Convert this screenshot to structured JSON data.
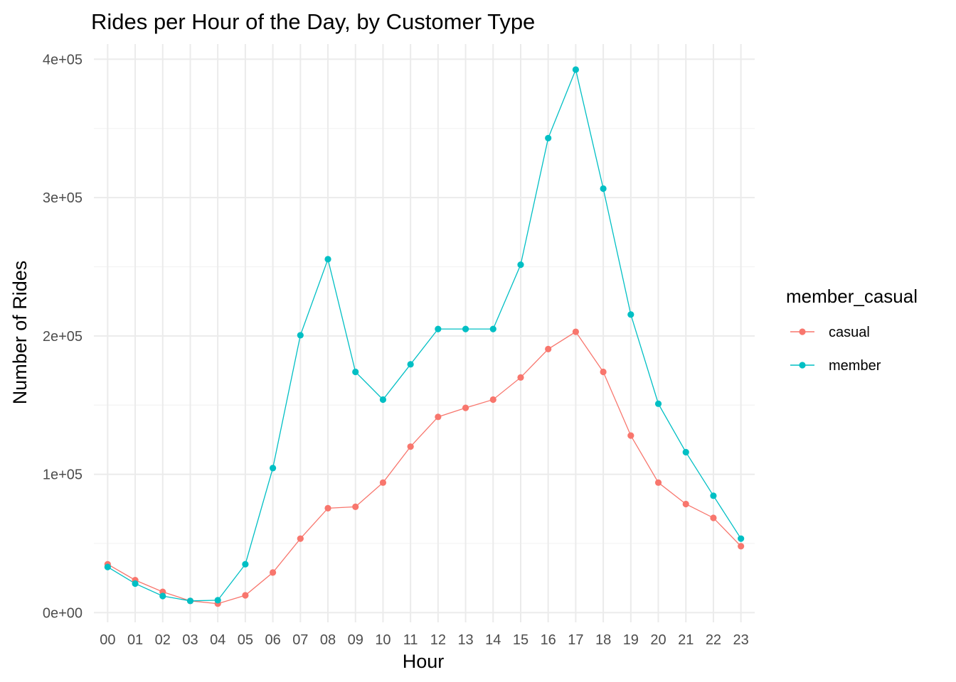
{
  "chart_data": {
    "type": "line",
    "title": "Rides per Hour of the Day, by Customer Type",
    "xlabel": "Hour",
    "ylabel": "Number of Rides",
    "categories": [
      "00",
      "01",
      "02",
      "03",
      "04",
      "05",
      "06",
      "07",
      "08",
      "09",
      "10",
      "11",
      "12",
      "13",
      "14",
      "15",
      "16",
      "17",
      "18",
      "19",
      "20",
      "21",
      "22",
      "23"
    ],
    "ylim": [
      -7000,
      411000
    ],
    "yticks": [
      0,
      100000,
      200000,
      300000,
      400000
    ],
    "ytick_labels": [
      "0e+00",
      "1e+05",
      "2e+05",
      "3e+05",
      "4e+05"
    ],
    "grid": true,
    "legend": {
      "title": "member_casual",
      "position": "right"
    },
    "series": [
      {
        "name": "casual",
        "color": "#F8766D",
        "values": [
          35000,
          23500,
          15000,
          8500,
          6500,
          12500,
          29000,
          53500,
          75500,
          76500,
          94000,
          120000,
          141500,
          148000,
          154000,
          170000,
          190500,
          203000,
          174000,
          128000,
          94000,
          78500,
          68500,
          48000
        ]
      },
      {
        "name": "member",
        "color": "#00BFC4",
        "values": [
          33000,
          21000,
          12000,
          8500,
          9000,
          35000,
          104500,
          200500,
          255500,
          174000,
          154000,
          179500,
          205000,
          205000,
          205000,
          251500,
          343000,
          392500,
          306500,
          215500,
          151000,
          116000,
          84500,
          53500
        ]
      }
    ]
  }
}
